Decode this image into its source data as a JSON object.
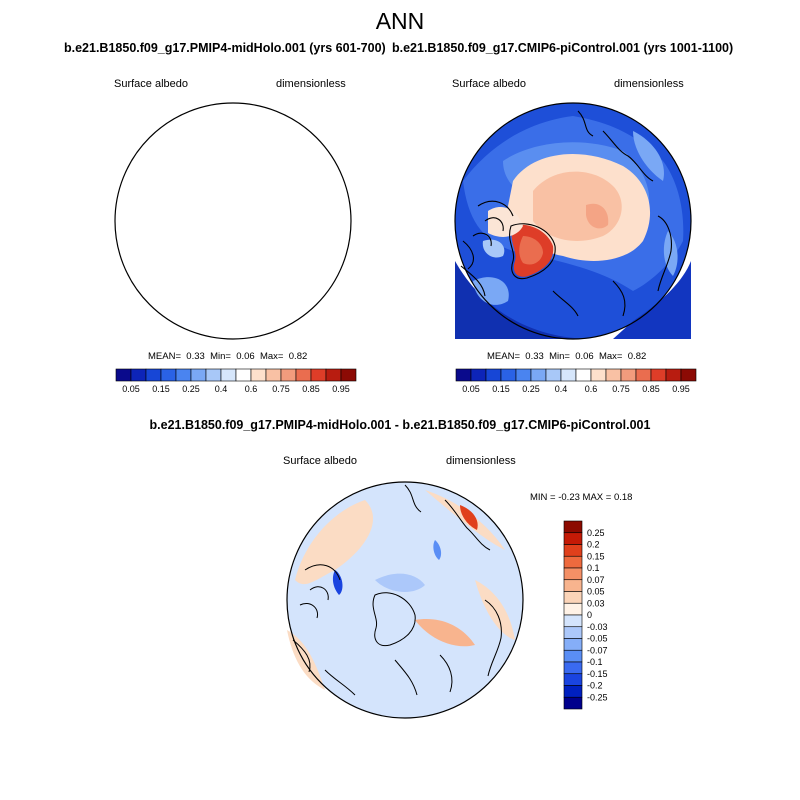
{
  "figure": {
    "title": "ANN"
  },
  "colors": {
    "abs_scale": [
      "#0a0a8c",
      "#0d24b8",
      "#1746d6",
      "#2a62e6",
      "#4a84f0",
      "#7aa8f5",
      "#a8c8f8",
      "#d6e6fb",
      "#ffffff",
      "#fde0cc",
      "#f9c1a4",
      "#f29c7d",
      "#ea6d4f",
      "#de3d28",
      "#b81c10",
      "#8c0a04"
    ],
    "diff_scale": [
      "#00008c",
      "#0020c0",
      "#1a44e0",
      "#3a6af0",
      "#5a8ef5",
      "#85aef8",
      "#acc8fa",
      "#d4e4fc",
      "#fff2e6",
      "#fbd4b8",
      "#f8b48e",
      "#f49066",
      "#ee6a3e",
      "#e0401c",
      "#c41a06",
      "#8c0a00"
    ]
  },
  "chart_data": [
    {
      "type": "heatmap",
      "projection": "north-polar-stereographic",
      "title": "b.e21.B1850.f09_g17.PMIP4-midHolo.001 (yrs 601-700)",
      "variable": "Surface albedo",
      "units": "dimensionless",
      "stats": {
        "mean_label": "MEAN=",
        "mean": "0.33",
        "min_label": "Min=",
        "min": "0.06",
        "max_label": "Max=",
        "max": "0.82"
      },
      "colorbar_labels": [
        "0.05",
        "0.15",
        "0.25",
        "0.4",
        "0.6",
        "0.75",
        "0.85",
        "0.95"
      ],
      "colorbar_levels": [
        0.05,
        0.1,
        0.15,
        0.2,
        0.25,
        0.3,
        0.4,
        0.5,
        0.6,
        0.7,
        0.75,
        0.8,
        0.85,
        0.9,
        0.95
      ]
    },
    {
      "type": "heatmap",
      "projection": "north-polar-stereographic",
      "title": "b.e21.B1850.f09_g17.CMIP6-piControl.001 (yrs 1001-1100)",
      "variable": "Surface albedo",
      "units": "dimensionless",
      "stats": {
        "mean_label": "MEAN=",
        "mean": "0.33",
        "min_label": "Min=",
        "min": "0.06",
        "max_label": "Max=",
        "max": "0.82"
      },
      "colorbar_labels": [
        "0.05",
        "0.15",
        "0.25",
        "0.4",
        "0.6",
        "0.75",
        "0.85",
        "0.95"
      ],
      "colorbar_levels": [
        0.05,
        0.1,
        0.15,
        0.2,
        0.25,
        0.3,
        0.4,
        0.5,
        0.6,
        0.7,
        0.75,
        0.8,
        0.85,
        0.9,
        0.95
      ]
    },
    {
      "type": "heatmap",
      "projection": "north-polar-stereographic",
      "title": "b.e21.B1850.f09_g17.PMIP4-midHolo.001 - b.e21.B1850.f09_g17.CMIP6-piControl.001",
      "variable": "Surface albedo",
      "units": "dimensionless",
      "stats": {
        "text": "MIN =  -0.23 MAX =   0.18",
        "min": -0.23,
        "max": 0.18
      },
      "colorbar_labels": [
        "0.25",
        "0.2",
        "0.15",
        "0.1",
        "0.07",
        "0.05",
        "0.03",
        "0",
        "-0.03",
        "-0.05",
        "-0.07",
        "-0.1",
        "-0.15",
        "-0.2",
        "-0.25"
      ],
      "colorbar_levels": [
        0.25,
        0.2,
        0.15,
        0.1,
        0.07,
        0.05,
        0.03,
        0,
        -0.03,
        -0.05,
        -0.07,
        -0.1,
        -0.15,
        -0.2,
        -0.25
      ]
    }
  ]
}
